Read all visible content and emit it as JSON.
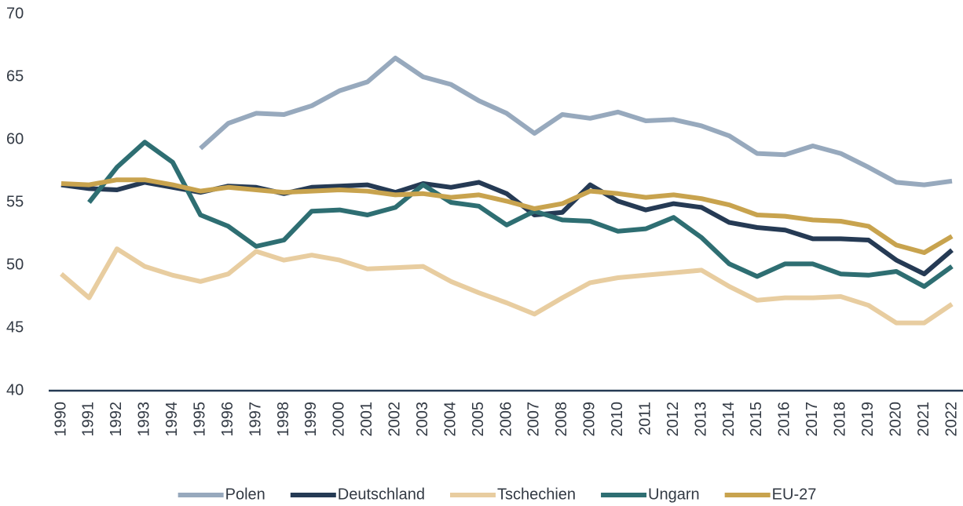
{
  "chart_data": {
    "type": "line",
    "categories": [
      "1990",
      "1991",
      "1992",
      "1993",
      "1994",
      "1995",
      "1996",
      "1997",
      "1998",
      "1999",
      "2000",
      "2001",
      "2002",
      "2003",
      "2004",
      "2005",
      "2006",
      "2007",
      "2008",
      "2009",
      "2010",
      "2011",
      "2012",
      "2013",
      "2014",
      "2015",
      "2016",
      "2017",
      "2018",
      "2019",
      "2020",
      "2021",
      "2022"
    ],
    "series": [
      {
        "name": "Polen",
        "color": "#97a9bd",
        "values": [
          null,
          null,
          null,
          null,
          null,
          59.3,
          61.3,
          62.1,
          62.0,
          62.7,
          63.9,
          64.6,
          66.5,
          65.0,
          64.4,
          63.1,
          62.1,
          60.5,
          62.0,
          61.7,
          62.2,
          61.5,
          61.6,
          61.1,
          60.3,
          58.9,
          58.8,
          59.5,
          58.9,
          57.8,
          56.6,
          56.4,
          56.7
        ]
      },
      {
        "name": "Deutschland",
        "color": "#253a54",
        "values": [
          56.4,
          56.1,
          56.0,
          56.6,
          56.2,
          55.8,
          56.3,
          56.2,
          55.7,
          56.2,
          56.3,
          56.4,
          55.8,
          56.5,
          56.2,
          56.6,
          55.7,
          54.0,
          54.2,
          56.4,
          55.1,
          54.4,
          54.9,
          54.6,
          53.4,
          53.0,
          52.8,
          52.1,
          52.1,
          52.0,
          50.4,
          49.3,
          51.2
        ]
      },
      {
        "name": "Tschechien",
        "color": "#e8cda0",
        "values": [
          49.3,
          47.4,
          51.3,
          49.9,
          49.2,
          48.7,
          49.3,
          51.1,
          50.4,
          50.8,
          50.4,
          49.7,
          49.8,
          49.9,
          48.7,
          47.8,
          47.0,
          46.1,
          47.4,
          48.6,
          49.0,
          49.2,
          49.4,
          49.6,
          48.3,
          47.2,
          47.4,
          47.4,
          47.5,
          46.8,
          45.4,
          45.4,
          46.9
        ]
      },
      {
        "name": "Ungarn",
        "color": "#2e6e72",
        "values": [
          null,
          55.0,
          57.8,
          59.8,
          58.2,
          54.0,
          53.1,
          51.5,
          52.0,
          54.3,
          54.4,
          54.0,
          54.6,
          56.4,
          55.0,
          54.7,
          53.2,
          54.3,
          53.6,
          53.5,
          52.7,
          52.9,
          53.8,
          52.2,
          50.1,
          49.1,
          50.1,
          50.1,
          49.3,
          49.2,
          49.5,
          48.3,
          49.9
        ]
      },
      {
        "name": "EU-27",
        "color": "#c8a34e",
        "values": [
          56.5,
          56.4,
          56.8,
          56.8,
          56.4,
          55.9,
          56.2,
          56.0,
          55.8,
          55.9,
          56.0,
          55.9,
          55.6,
          55.7,
          55.4,
          55.6,
          55.1,
          54.5,
          54.9,
          55.9,
          55.7,
          55.4,
          55.6,
          55.3,
          54.8,
          54.0,
          53.9,
          53.6,
          53.5,
          53.1,
          51.6,
          51.0,
          52.3
        ]
      }
    ],
    "ylim": [
      40,
      70
    ],
    "yticks": [
      40,
      45,
      50,
      55,
      60,
      65,
      70
    ],
    "grid": false,
    "legend": "bottom"
  }
}
